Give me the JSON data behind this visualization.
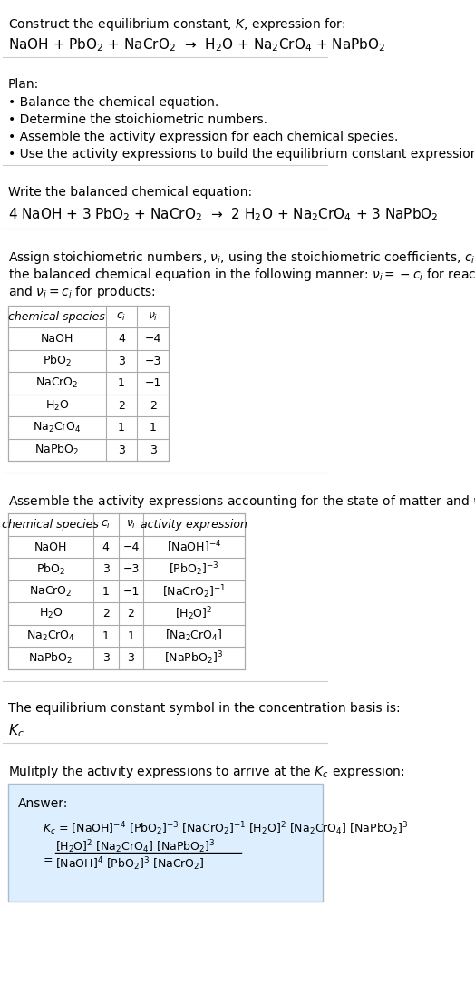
{
  "title_line1": "Construct the equilibrium constant, $K$, expression for:",
  "title_line2": "NaOH + PbO$_2$ + NaCrO$_2$  →  H$_2$O + Na$_2$CrO$_4$ + NaPbO$_2$",
  "plan_header": "Plan:",
  "plan_bullets": [
    "• Balance the chemical equation.",
    "• Determine the stoichiometric numbers.",
    "• Assemble the activity expression for each chemical species.",
    "• Use the activity expressions to build the equilibrium constant expression."
  ],
  "balanced_header": "Write the balanced chemical equation:",
  "balanced_eq": "4 NaOH + 3 PbO$_2$ + NaCrO$_2$  →  2 H$_2$O + Na$_2$CrO$_4$ + 3 NaPbO$_2$",
  "stoich_header": "Assign stoichiometric numbers, $\\nu_i$, using the stoichiometric coefficients, $c_i$, from\nthe balanced chemical equation in the following manner: $\\nu_i = -c_i$ for reactants\nand $\\nu_i = c_i$ for products:",
  "table1_headers": [
    "chemical species",
    "$c_i$",
    "$\\nu_i$"
  ],
  "table1_rows": [
    [
      "NaOH",
      "4",
      "−4"
    ],
    [
      "PbO$_2$",
      "3",
      "−3"
    ],
    [
      "NaCrO$_2$",
      "1",
      "−1"
    ],
    [
      "H$_2$O",
      "2",
      "2"
    ],
    [
      "Na$_2$CrO$_4$",
      "1",
      "1"
    ],
    [
      "NaPbO$_2$",
      "3",
      "3"
    ]
  ],
  "activity_header": "Assemble the activity expressions accounting for the state of matter and $\\nu_i$:",
  "table2_headers": [
    "chemical species",
    "$c_i$",
    "$\\nu_i$",
    "activity expression"
  ],
  "table2_rows": [
    [
      "NaOH",
      "4",
      "−4",
      "[NaOH]$^{-4}$"
    ],
    [
      "PbO$_2$",
      "3",
      "−3",
      "[PbO$_2$]$^{-3}$"
    ],
    [
      "NaCrO$_2$",
      "1",
      "−1",
      "[NaCrO$_2$]$^{-1}$"
    ],
    [
      "H$_2$O",
      "2",
      "2",
      "[H$_2$O]$^2$"
    ],
    [
      "Na$_2$CrO$_4$",
      "1",
      "1",
      "[Na$_2$CrO$_4$]"
    ],
    [
      "NaPbO$_2$",
      "3",
      "3",
      "[NaPbO$_2$]$^3$"
    ]
  ],
  "kc_header": "The equilibrium constant symbol in the concentration basis is:",
  "kc_symbol": "$K_c$",
  "multiply_header": "Mulitply the activity expressions to arrive at the $K_c$ expression:",
  "answer_label": "Answer:",
  "answer_line1": "$K_c$ = [NaOH]$^{-4}$ [PbO$_2$]$^{-3}$ [NaCrO$_2$]$^{-1}$ [H$_2$O]$^2$ [Na$_2$CrO$_4$] [NaPbO$_2$]$^3$",
  "answer_line2": "     [H$_2$O]$^2$ [Na$_2$CrO$_4$] [NaPbO$_2$]$^3$",
  "answer_line3": "= —————————————————————",
  "answer_line4": "     [NaOH]$^4$ [PbO$_2$]$^3$ [NaCrO$_2$]",
  "bg_color": "#ffffff",
  "table_border_color": "#aaaaaa",
  "answer_box_color": "#ddeeff",
  "text_color": "#000000",
  "font_size": 10,
  "separator_color": "#cccccc"
}
